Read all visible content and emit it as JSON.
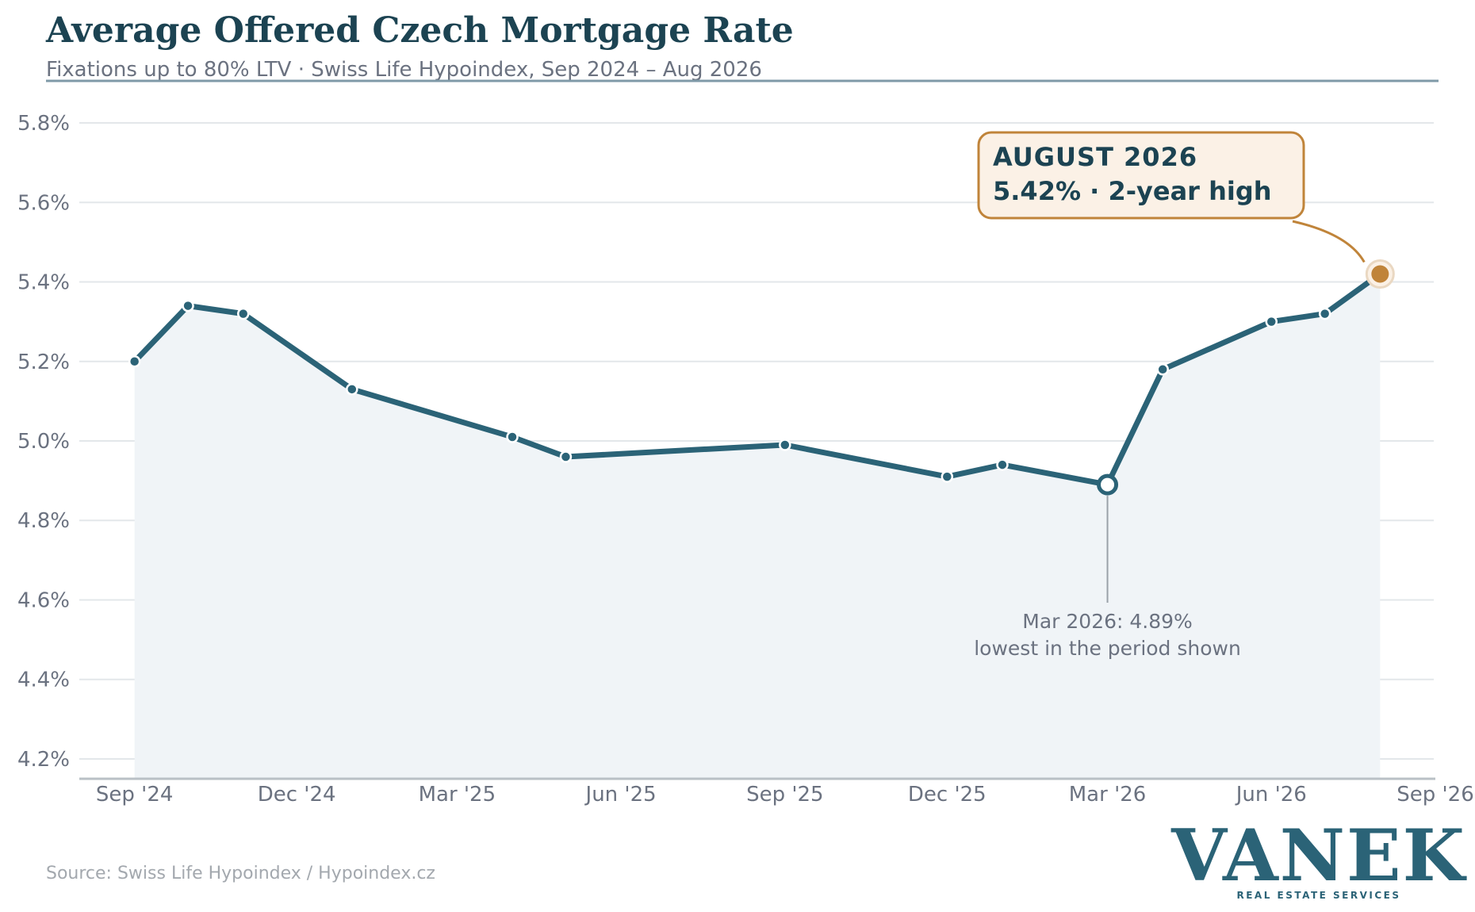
{
  "header": {
    "title": "Average Offered Czech Mortgage Rate",
    "subtitle": "Fixations up to 80% LTV  ·  Swiss Life Hypoindex, Sep 2024 – Aug 2026"
  },
  "footer": {
    "source": "Source: Swiss Life Hypoindex / Hypoindex.cz"
  },
  "logo": {
    "name": "VANEK",
    "tagline": "REAL ESTATE SERVICES"
  },
  "colors": {
    "line": "#2b6377",
    "title": "#1c4352",
    "subtitle": "#6b7280",
    "highlight": "#c0843a",
    "callout_bg": "#fbf1e6",
    "area_fill": "#f0f4f7",
    "grid": "#e3e7ea",
    "axis": "#b9c0c6",
    "header_rule": "#7f9aa8"
  },
  "chart_data": {
    "type": "line",
    "title": "Average Offered Czech Mortgage Rate",
    "subtitle": "Fixations up to 80% LTV  ·  Swiss Life Hypoindex, Sep 2024 – Aug 2026",
    "xlabel": "",
    "ylabel": "",
    "x_axis": {
      "type": "date",
      "range": [
        "2024-08-01",
        "2026-09-01"
      ],
      "ticks": [
        {
          "date": "2024-09-01",
          "label": "Sep '24"
        },
        {
          "date": "2024-12-01",
          "label": "Dec '24"
        },
        {
          "date": "2025-03-01",
          "label": "Mar '25"
        },
        {
          "date": "2025-06-01",
          "label": "Jun '25"
        },
        {
          "date": "2025-09-01",
          "label": "Sep '25"
        },
        {
          "date": "2025-12-01",
          "label": "Dec '25"
        },
        {
          "date": "2026-03-01",
          "label": "Mar '26"
        },
        {
          "date": "2026-06-01",
          "label": "Jun '26"
        },
        {
          "date": "2026-09-01",
          "label": "Sep '26"
        }
      ]
    },
    "y_axis": {
      "range": [
        4.15,
        5.85
      ],
      "unit": "%",
      "ticks": [
        4.2,
        4.4,
        4.6,
        4.8,
        5.0,
        5.2,
        5.4,
        5.6,
        5.8
      ],
      "tick_labels": [
        "4.2%",
        "4.4%",
        "4.6%",
        "4.8%",
        "5.0%",
        "5.2%",
        "5.4%",
        "5.6%",
        "5.8%"
      ]
    },
    "grid": true,
    "series": [
      {
        "points": [
          {
            "x": "2024-09-01",
            "y": 5.2
          },
          {
            "x": "2024-10-01",
            "y": 5.34
          },
          {
            "x": "2024-11-01",
            "y": 5.32
          },
          {
            "x": "2025-01-01",
            "y": 5.13
          },
          {
            "x": "2025-04-01",
            "y": 5.01
          },
          {
            "x": "2025-05-01",
            "y": 4.96
          },
          {
            "x": "2025-09-01",
            "y": 4.99
          },
          {
            "x": "2025-12-01",
            "y": 4.91
          },
          {
            "x": "2026-01-01",
            "y": 4.94
          },
          {
            "x": "2026-03-01",
            "y": 4.89
          },
          {
            "x": "2026-04-01",
            "y": 5.18
          },
          {
            "x": "2026-06-01",
            "y": 5.3
          },
          {
            "x": "2026-07-01",
            "y": 5.32
          },
          {
            "x": "2026-08-01",
            "y": 5.42
          }
        ]
      }
    ],
    "annotations": {
      "high": {
        "x": "2026-08-01",
        "y": 5.42,
        "line1": "AUGUST 2026",
        "line2": "5.42%  ·  2-year high"
      },
      "low": {
        "x": "2026-03-01",
        "y": 4.89,
        "line1": "Mar 2026: 4.89%",
        "line2": "lowest in the period shown"
      }
    }
  }
}
